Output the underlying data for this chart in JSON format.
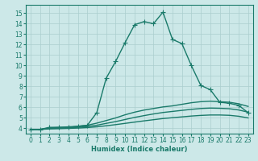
{
  "xlabel": "Humidex (Indice chaleur)",
  "xlim": [
    -0.5,
    23.5
  ],
  "ylim": [
    3.5,
    15.8
  ],
  "xticks": [
    0,
    1,
    2,
    3,
    4,
    5,
    6,
    7,
    8,
    9,
    10,
    11,
    12,
    13,
    14,
    15,
    16,
    17,
    18,
    19,
    20,
    21,
    22,
    23
  ],
  "yticks": [
    4,
    5,
    6,
    7,
    8,
    9,
    10,
    11,
    12,
    13,
    14,
    15
  ],
  "bg_color": "#cce8e8",
  "line_color": "#1a7a6a",
  "grid_color": "#aacece",
  "series": [
    {
      "x": [
        0,
        1,
        2,
        3,
        4,
        5,
        6,
        7,
        8,
        9,
        10,
        11,
        12,
        13,
        14,
        15,
        16,
        17,
        18,
        19,
        20,
        21,
        22,
        23
      ],
      "y": [
        3.9,
        3.9,
        4.1,
        4.1,
        4.1,
        4.2,
        4.3,
        5.5,
        8.8,
        10.4,
        12.2,
        13.9,
        14.2,
        14.0,
        15.1,
        12.5,
        12.1,
        10.0,
        8.1,
        7.7,
        6.5,
        6.4,
        6.2,
        5.5
      ],
      "marker": "+",
      "lw": 1.0,
      "ms": 4,
      "linestyle": "-"
    },
    {
      "x": [
        0,
        1,
        2,
        3,
        4,
        5,
        6,
        7,
        8,
        9,
        10,
        11,
        12,
        13,
        14,
        15,
        16,
        17,
        18,
        19,
        20,
        21,
        22,
        23
      ],
      "y": [
        3.9,
        3.9,
        4.05,
        4.1,
        4.15,
        4.2,
        4.3,
        4.5,
        4.75,
        5.0,
        5.3,
        5.55,
        5.75,
        5.9,
        6.05,
        6.15,
        6.3,
        6.45,
        6.55,
        6.6,
        6.55,
        6.5,
        6.35,
        6.1
      ],
      "marker": null,
      "lw": 1.0,
      "ms": 0,
      "linestyle": "-"
    },
    {
      "x": [
        0,
        1,
        2,
        3,
        4,
        5,
        6,
        7,
        8,
        9,
        10,
        11,
        12,
        13,
        14,
        15,
        16,
        17,
        18,
        19,
        20,
        21,
        22,
        23
      ],
      "y": [
        3.9,
        3.9,
        4.0,
        4.02,
        4.06,
        4.1,
        4.18,
        4.3,
        4.48,
        4.65,
        4.85,
        5.05,
        5.22,
        5.38,
        5.52,
        5.62,
        5.72,
        5.82,
        5.9,
        5.94,
        5.92,
        5.88,
        5.76,
        5.55
      ],
      "marker": null,
      "lw": 1.0,
      "ms": 0,
      "linestyle": "-"
    },
    {
      "x": [
        0,
        1,
        2,
        3,
        4,
        5,
        6,
        7,
        8,
        9,
        10,
        11,
        12,
        13,
        14,
        15,
        16,
        17,
        18,
        19,
        20,
        21,
        22,
        23
      ],
      "y": [
        3.9,
        3.9,
        3.95,
        3.97,
        4.0,
        4.03,
        4.08,
        4.15,
        4.25,
        4.36,
        4.48,
        4.6,
        4.72,
        4.83,
        4.94,
        5.02,
        5.1,
        5.18,
        5.24,
        5.28,
        5.28,
        5.25,
        5.16,
        5.0
      ],
      "marker": null,
      "lw": 1.0,
      "ms": 0,
      "linestyle": "-"
    }
  ]
}
